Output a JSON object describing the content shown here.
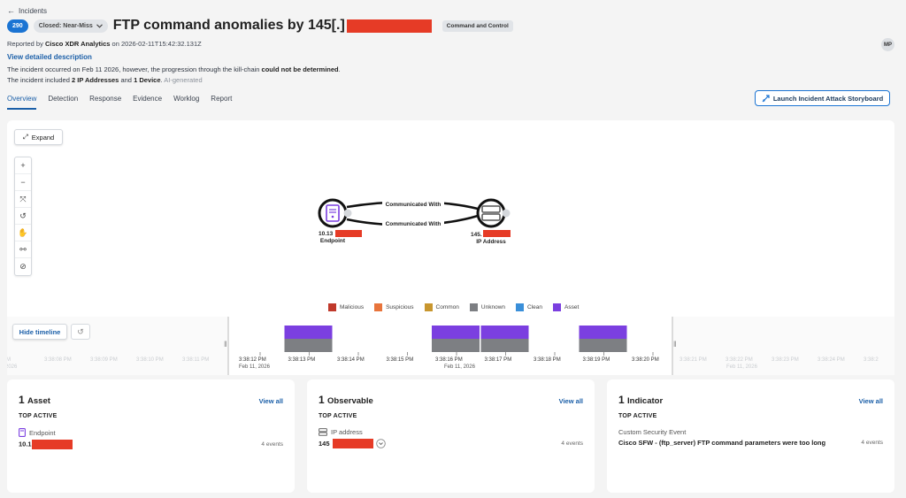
{
  "breadcrumb": {
    "back_label": "Incidents"
  },
  "header": {
    "incident_count": "290",
    "status": "Closed: Near-Miss",
    "title": "FTP command anomalies by 145[.]",
    "tag": "Command and Control",
    "avatar": "MP"
  },
  "meta": {
    "reported_prefix": "Reported by",
    "reporter": "Cisco XDR Analytics",
    "reported_on": "on 2026-02-11T15:42:32.131Z",
    "view_description": "View detailed description",
    "desc_part1": "The incident occurred on Feb 11 2026, however, the progression through the kill-chain",
    "desc_bold1": "could not be determined",
    "desc_part2": ". The incident included",
    "desc_bold2": "2 IP Addresses",
    "desc_part3": "and",
    "desc_bold3": "1 Device",
    "desc_part4": ".",
    "desc_ai": "AI-generated"
  },
  "tabs": [
    "Overview",
    "Detection",
    "Response",
    "Evidence",
    "Worklog",
    "Report"
  ],
  "storyboard_button": "Launch Incident Attack Storyboard",
  "graph": {
    "expand_label": "Expand",
    "endpoint_ip": "10.13",
    "endpoint_label": "Endpoint",
    "ip_node_ip": "145.",
    "ip_node_label": "IP Address",
    "edge_label_1": "Communicated With",
    "edge_label_2": "Communicated With"
  },
  "legend": [
    {
      "label": "Malicious",
      "color": "#c0392b"
    },
    {
      "label": "Suspicious",
      "color": "#e8743b"
    },
    {
      "label": "Common",
      "color": "#c8962e"
    },
    {
      "label": "Unknown",
      "color": "#7d7f83"
    },
    {
      "label": "Clean",
      "color": "#3a8fd9"
    },
    {
      "label": "Asset",
      "color": "#7b3fe0"
    }
  ],
  "timeline": {
    "hide_label": "Hide timeline",
    "ticks": [
      "3:38:12 PM",
      "3:38:13 PM",
      "3:38:14 PM",
      "3:38:15 PM",
      "3:38:16 PM",
      "3:38:17 PM",
      "3:38:18 PM",
      "3:38:19 PM",
      "3:38:20 PM"
    ],
    "faded_left": [
      "7 PM",
      "3:38:08 PM",
      "3:38:09 PM",
      "3:38:10 PM",
      "3:38:11 PM"
    ],
    "faded_right": [
      "3:38:21 PM",
      "3:38:22 PM",
      "3:38:23 PM",
      "3:38:24 PM",
      "3:38:2"
    ],
    "date_label": "Feb 11, 2026",
    "faded_date_left": "2026",
    "faded_date_right": "Feb 11, 2026"
  },
  "cards": {
    "asset": {
      "count": "1",
      "label": "Asset",
      "view_all": "View all",
      "top_active": "TOP ACTIVE",
      "item_label": "Endpoint",
      "item_value": "10.1",
      "events": "4 events"
    },
    "observable": {
      "count": "1",
      "label": "Observable",
      "view_all": "View all",
      "top_active": "TOP ACTIVE",
      "item_label": "IP address",
      "item_value": "145",
      "events": "4 events"
    },
    "indicator": {
      "count": "1",
      "label": "Indicator",
      "view_all": "View all",
      "top_active": "TOP ACTIVE",
      "item_label": "Custom Security Event",
      "item_value": "Cisco SFW - (ftp_server) FTP command parameters were too long",
      "events": "4 events"
    }
  },
  "colors": {
    "accent": "#1b74d3",
    "asset_purple": "#7b3fe0",
    "unknown_gray": "#7d7f83",
    "redaction": "#e63b26"
  }
}
